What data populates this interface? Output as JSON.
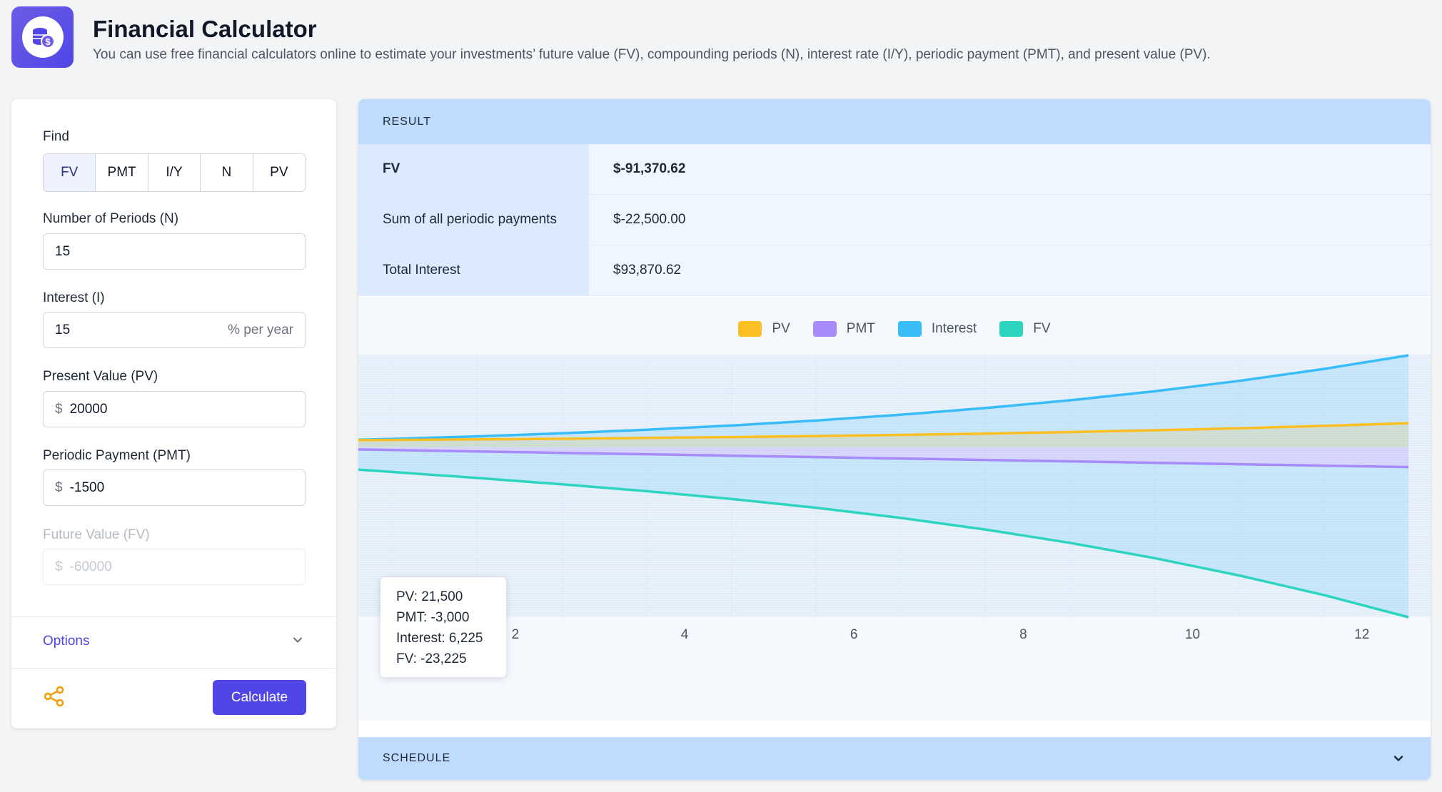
{
  "header": {
    "title": "Financial Calculator",
    "subtitle": "You can use free financial calculators online to estimate your investments’ future value (FV), compounding periods (N), interest rate (I/Y), periodic payment (PMT), and present value (PV)."
  },
  "form": {
    "find_label": "Find",
    "find_options": [
      "FV",
      "PMT",
      "I/Y",
      "N",
      "PV"
    ],
    "find_selected": "FV",
    "n_label": "Number of Periods (N)",
    "n_value": "15",
    "i_label": "Interest (I)",
    "i_value": "15",
    "i_suffix": "% per year",
    "pv_label": "Present Value (PV)",
    "pv_value": "20000",
    "pmt_label": "Periodic Payment (PMT)",
    "pmt_value": "-1500",
    "fv_label": "Future Value (FV)",
    "fv_value": "-60000",
    "currency": "$",
    "options_label": "Options",
    "calculate_label": "Calculate"
  },
  "result": {
    "header": "RESULT",
    "rows": [
      {
        "label": "FV",
        "value": "$-91,370.62"
      },
      {
        "label": "Sum of all periodic payments",
        "value": "$-22,500.00"
      },
      {
        "label": "Total Interest",
        "value": "$93,870.62"
      }
    ]
  },
  "tooltip": {
    "pv": "PV: 21,500",
    "pmt": "PMT: -3,000",
    "interest": "Interest: 6,225",
    "fv": "FV: -23,225"
  },
  "schedule": {
    "header": "SCHEDULE"
  },
  "colors": {
    "pv": "#fbbf24",
    "pmt": "#a78bfa",
    "interest": "#38bdf8",
    "fv": "#2dd4bf",
    "accent": "#4f46e5"
  },
  "chart_data": {
    "type": "area",
    "x": [
      0,
      1,
      2,
      3,
      4,
      5,
      6,
      7,
      8,
      9,
      10,
      11,
      12,
      13
    ],
    "series": [
      {
        "name": "PV",
        "values": [
          20000,
          21500,
          23225,
          25209,
          27490,
          30114,
          33131,
          36600,
          40590,
          45178,
          50455,
          56523,
          63502,
          71527
        ]
      },
      {
        "name": "PMT",
        "values": [
          -1500,
          -3000,
          -4500,
          -6000,
          -7500,
          -9000,
          -10500,
          -12000,
          -13500,
          -15000,
          -16500,
          -18000,
          -19500,
          -21000
        ]
      },
      {
        "name": "Interest",
        "values": [
          0,
          6225,
          13534,
          22075,
          32012,
          43529,
          56834,
          72159,
          89767,
          109956,
          133059,
          159452,
          189562,
          223865
        ]
      },
      {
        "name": "FV",
        "values": [
          -18500,
          -23225,
          -28034,
          -33209,
          -39002,
          -45670,
          -53472,
          -62667,
          -73454,
          -86034,
          -100605,
          -117380,
          -136587,
          -158474
        ]
      }
    ],
    "xticks": [
      "0",
      "2",
      "4",
      "6",
      "8",
      "10",
      "12"
    ],
    "legend": [
      "PV",
      "PMT",
      "Interest",
      "FV"
    ],
    "legend_position": "top"
  }
}
